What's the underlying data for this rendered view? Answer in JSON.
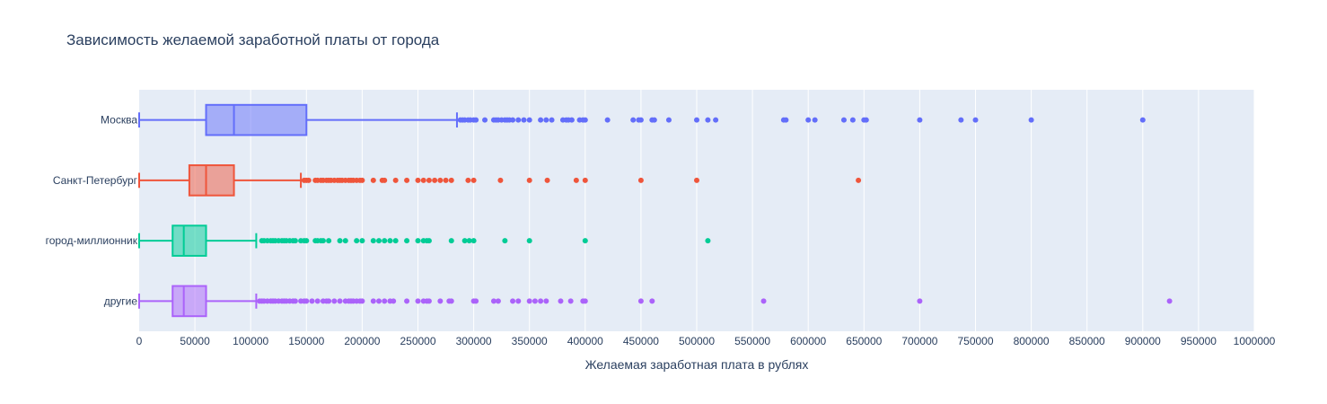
{
  "chart_data": {
    "type": "box",
    "orientation": "horizontal",
    "title": "Зависимость желаемой заработной платы от города",
    "xlabel": "Желаемая заработная плата в рублях",
    "ylabel": "",
    "xlim": [
      0,
      1000000
    ],
    "xticks": [
      0,
      50000,
      100000,
      150000,
      200000,
      250000,
      300000,
      350000,
      400000,
      450000,
      500000,
      550000,
      600000,
      650000,
      700000,
      750000,
      800000,
      850000,
      900000,
      950000,
      1000000
    ],
    "xtick_labels": [
      "0",
      "50000",
      "100000",
      "150000",
      "200000",
      "250000",
      "300000",
      "350000",
      "400000",
      "450000",
      "500000",
      "550000",
      "600000",
      "650000",
      "700000",
      "750000",
      "800000",
      "850000",
      "900000",
      "950000",
      "1000000"
    ],
    "grid": true,
    "legend": "none",
    "categories": [
      "Москва",
      "Санкт-Петербург",
      "город-миллионник",
      "другие"
    ],
    "series": [
      {
        "category": "Москва",
        "color": "#636efa",
        "min": 0,
        "q1": 60000,
        "median": 85000,
        "q3": 150000,
        "upper_fence": 285000,
        "outliers": [
          288000,
          290000,
          292000,
          295000,
          297000,
          300000,
          302000,
          310000,
          318000,
          320000,
          322000,
          325000,
          328000,
          330000,
          332000,
          335000,
          340000,
          345000,
          350000,
          360000,
          365000,
          370000,
          380000,
          383000,
          385000,
          388000,
          395000,
          398000,
          400000,
          420000,
          443000,
          448000,
          450000,
          460000,
          462000,
          475000,
          500000,
          510000,
          517000,
          578000,
          580000,
          600000,
          606000,
          632000,
          640000,
          650000,
          652000,
          700000,
          737000,
          750000,
          800000,
          900000
        ]
      },
      {
        "category": "Санкт-Петербург",
        "color": "#ef553b",
        "min": 0,
        "q1": 45000,
        "median": 60000,
        "q3": 85000,
        "upper_fence": 145000,
        "outliers": [
          148000,
          150000,
          152000,
          158000,
          160000,
          163000,
          165000,
          168000,
          170000,
          172000,
          175000,
          178000,
          180000,
          182000,
          185000,
          188000,
          190000,
          192000,
          195000,
          198000,
          200000,
          210000,
          218000,
          220000,
          230000,
          240000,
          250000,
          255000,
          260000,
          265000,
          270000,
          275000,
          280000,
          295000,
          300000,
          324000,
          350000,
          366000,
          392000,
          400000,
          450000,
          500000,
          645000
        ]
      },
      {
        "category": "город-миллионник",
        "color": "#00cc96",
        "min": 0,
        "q1": 30000,
        "median": 40000,
        "q3": 60000,
        "upper_fence": 105000,
        "outliers": [
          110000,
          112000,
          115000,
          118000,
          120000,
          122000,
          125000,
          128000,
          130000,
          132000,
          135000,
          138000,
          140000,
          145000,
          148000,
          150000,
          158000,
          160000,
          163000,
          165000,
          170000,
          180000,
          185000,
          195000,
          200000,
          210000,
          215000,
          220000,
          225000,
          230000,
          240000,
          250000,
          255000,
          258000,
          260000,
          280000,
          292000,
          296000,
          300000,
          328000,
          350000,
          400000,
          510000
        ]
      },
      {
        "category": "другие",
        "color": "#ab63fa",
        "min": 0,
        "q1": 30000,
        "median": 40000,
        "q3": 60000,
        "upper_fence": 105000,
        "outliers": [
          108000,
          110000,
          112000,
          115000,
          118000,
          120000,
          122000,
          125000,
          128000,
          130000,
          132000,
          135000,
          138000,
          140000,
          145000,
          148000,
          150000,
          155000,
          160000,
          165000,
          168000,
          170000,
          175000,
          180000,
          185000,
          188000,
          190000,
          192000,
          195000,
          198000,
          200000,
          210000,
          215000,
          220000,
          225000,
          228000,
          240000,
          250000,
          255000,
          258000,
          260000,
          270000,
          278000,
          280000,
          300000,
          302000,
          318000,
          322000,
          335000,
          340000,
          350000,
          355000,
          360000,
          365000,
          378000,
          387000,
          398000,
          400000,
          450000,
          460000,
          560000,
          700000,
          924000
        ]
      }
    ]
  }
}
